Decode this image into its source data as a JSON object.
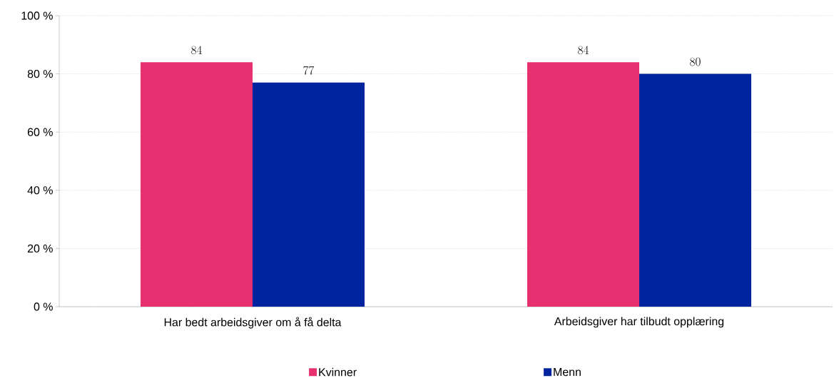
{
  "chart_data": {
    "type": "bar",
    "categories": [
      "Har bedt arbeidsgiver om å få delta",
      "Arbeidsgiver har tilbudt opplæring"
    ],
    "series": [
      {
        "name": "Kvinner",
        "color": "#e6306f",
        "values": [
          84,
          84
        ]
      },
      {
        "name": "Menn",
        "color": "#0023a0",
        "values": [
          77,
          80
        ]
      }
    ],
    "ylim": [
      0,
      100
    ],
    "yticks": [
      {
        "value": 0,
        "label": "0 %"
      },
      {
        "value": 20,
        "label": "20 %"
      },
      {
        "value": 40,
        "label": "40 %"
      },
      {
        "value": 60,
        "label": "60 %"
      },
      {
        "value": 80,
        "label": "80 %"
      },
      {
        "value": 100,
        "label": "100 %"
      }
    ],
    "grid": "y",
    "legend": "bottom",
    "data_labels": true
  }
}
